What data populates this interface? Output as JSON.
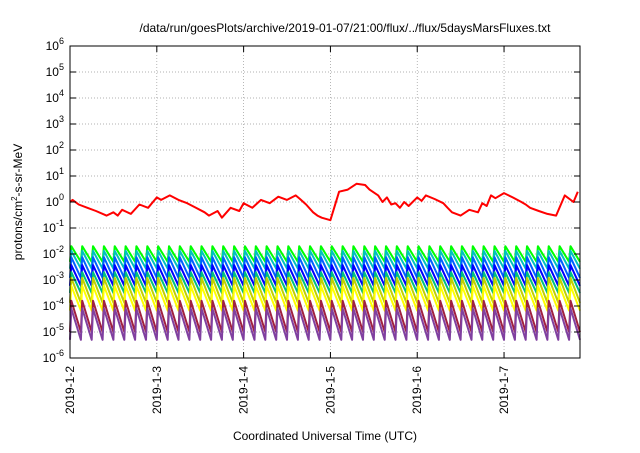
{
  "chart_data": {
    "type": "line",
    "title": "/data/run/goesPlots/archive/2019-01-07/21:00/flux/../flux/5daysMarsFluxes.txt",
    "xlabel": "Coordinated Universal Time (UTC)",
    "ylabel": {
      "base": "protons/cm",
      "sup": "2",
      "rest": "-s-sr-MeV"
    },
    "y_scale": "log",
    "ylim": [
      1e-06,
      1000000.0
    ],
    "y_ticks": [
      {
        "exp": -6,
        "label_base": "10",
        "label_exp": "-6"
      },
      {
        "exp": -5,
        "label_base": "10",
        "label_exp": "-5"
      },
      {
        "exp": -4,
        "label_base": "10",
        "label_exp": "-4"
      },
      {
        "exp": -3,
        "label_base": "10",
        "label_exp": "-3"
      },
      {
        "exp": -2,
        "label_base": "10",
        "label_exp": "-2"
      },
      {
        "exp": -1,
        "label_base": "10",
        "label_exp": "-1"
      },
      {
        "exp": 0,
        "label_base": "10",
        "label_exp": "0"
      },
      {
        "exp": 1,
        "label_base": "10",
        "label_exp": "1"
      },
      {
        "exp": 2,
        "label_base": "10",
        "label_exp": "2"
      },
      {
        "exp": 3,
        "label_base": "10",
        "label_exp": "3"
      },
      {
        "exp": 4,
        "label_base": "10",
        "label_exp": "4"
      },
      {
        "exp": 5,
        "label_base": "10",
        "label_exp": "5"
      },
      {
        "exp": 6,
        "label_base": "10",
        "label_exp": "6"
      }
    ],
    "xlim": [
      "2019-01-02 00:00",
      "2019-01-07 21:00"
    ],
    "x_ticks": [
      "2019-1-2",
      "2019-1-3",
      "2019-1-4",
      "2019-1-5",
      "2019-1-6",
      "2019-1-7"
    ],
    "grid": "dotted",
    "legend": "none",
    "series": [
      {
        "color": "#ff0000",
        "x_days": [
          0.0,
          0.03,
          0.1,
          0.2,
          0.3,
          0.42,
          0.5,
          0.55,
          0.6,
          0.7,
          0.8,
          0.9,
          1.0,
          1.05,
          1.15,
          1.25,
          1.35,
          1.45,
          1.55,
          1.6,
          1.7,
          1.75,
          1.85,
          1.95,
          2.0,
          2.1,
          2.2,
          2.3,
          2.4,
          2.5,
          2.6,
          2.65,
          2.72,
          2.8,
          2.85,
          2.9,
          3.0,
          3.1,
          3.2,
          3.3,
          3.4,
          3.45,
          3.55,
          3.6,
          3.65,
          3.7,
          3.75,
          3.8,
          3.85,
          3.9,
          4.0,
          4.05,
          4.1,
          4.2,
          4.3,
          4.35,
          4.4,
          4.5,
          4.6,
          4.7,
          4.75,
          4.8,
          4.85,
          4.9,
          5.0,
          5.1,
          5.2,
          5.25,
          5.3,
          5.4,
          5.5,
          5.6,
          5.7,
          5.8,
          5.85
        ],
        "values": [
          1.0,
          1.2,
          0.8,
          0.6,
          0.45,
          0.3,
          0.4,
          0.3,
          0.5,
          0.35,
          0.8,
          0.6,
          1.5,
          1.2,
          1.8,
          1.2,
          0.9,
          0.6,
          0.4,
          0.3,
          0.45,
          0.25,
          0.6,
          0.45,
          0.9,
          0.6,
          1.2,
          0.9,
          1.6,
          1.2,
          1.8,
          1.3,
          0.8,
          0.4,
          0.3,
          0.25,
          0.2,
          2.5,
          3.0,
          5.0,
          4.5,
          3.0,
          1.8,
          1.0,
          1.5,
          0.8,
          0.9,
          0.6,
          1.0,
          0.7,
          1.5,
          1.1,
          1.8,
          1.3,
          0.9,
          0.6,
          0.4,
          0.3,
          0.5,
          0.4,
          0.9,
          0.7,
          1.8,
          1.4,
          2.2,
          1.5,
          1.0,
          0.8,
          0.6,
          0.45,
          0.35,
          0.3,
          1.8,
          1.0,
          2.5
        ]
      },
      {
        "color": "#00ff00",
        "base": 0.01,
        "amp": 2.0
      },
      {
        "color": "#00c0c0",
        "base": 0.006,
        "amp": 2.2
      },
      {
        "color": "#0060ff",
        "base": 0.003,
        "amp": 2.5
      },
      {
        "color": "#0000ff",
        "base": 0.0015,
        "amp": 2.5
      },
      {
        "color": "#00c080",
        "base": 0.0008,
        "amp": 2.5
      },
      {
        "color": "#c0d000",
        "base": 0.0004,
        "amp": 3.0
      },
      {
        "color": "#ffff00",
        "base": 0.0002,
        "amp": 3.0
      },
      {
        "color": "#a02040",
        "base": 4e-05,
        "amp": 4.0
      },
      {
        "color": "#8040a0",
        "base": 2e-05,
        "amp": 4.0
      }
    ]
  }
}
